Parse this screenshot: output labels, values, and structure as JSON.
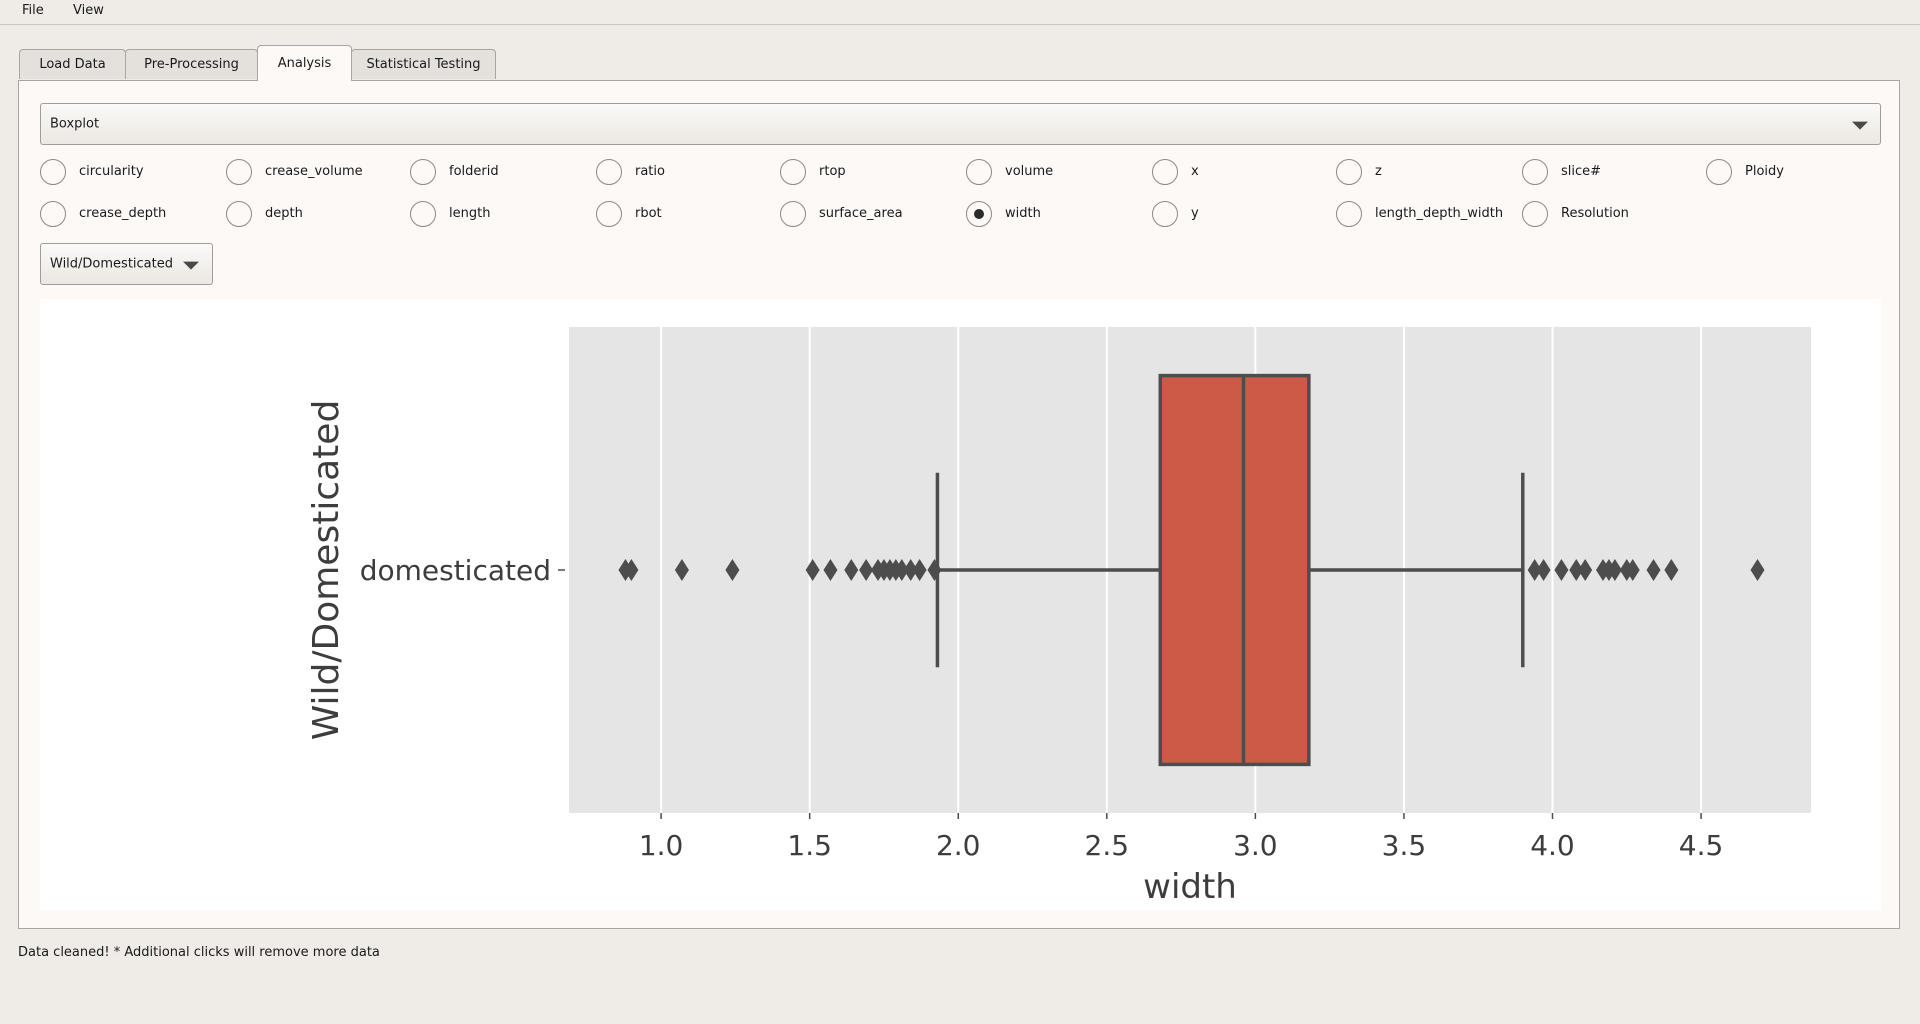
{
  "menu": {
    "file": "File",
    "view": "View"
  },
  "tabs": [
    {
      "label": "Load Data",
      "active": false
    },
    {
      "label": "Pre-Processing",
      "active": false
    },
    {
      "label": "Analysis",
      "active": true
    },
    {
      "label": "Statistical Testing",
      "active": false
    }
  ],
  "plot_type_select": {
    "value": "Boxplot"
  },
  "group_select": {
    "value": "Wild/Domesticated"
  },
  "variables": [
    {
      "label": "circularity",
      "checked": false
    },
    {
      "label": "crease_volume",
      "checked": false
    },
    {
      "label": "folderid",
      "checked": false
    },
    {
      "label": "ratio",
      "checked": false
    },
    {
      "label": "rtop",
      "checked": false
    },
    {
      "label": "volume",
      "checked": false
    },
    {
      "label": "x",
      "checked": false
    },
    {
      "label": "z",
      "checked": false
    },
    {
      "label": "slice#",
      "checked": false
    },
    {
      "label": "Ploidy",
      "checked": false
    },
    {
      "label": "crease_depth",
      "checked": false
    },
    {
      "label": "depth",
      "checked": false
    },
    {
      "label": "length",
      "checked": false
    },
    {
      "label": "rbot",
      "checked": false
    },
    {
      "label": "surface_area",
      "checked": false
    },
    {
      "label": "width",
      "checked": true
    },
    {
      "label": "y",
      "checked": false
    },
    {
      "label": "length_depth_width",
      "checked": false
    },
    {
      "label": "Resolution",
      "checked": false
    }
  ],
  "colors": {
    "box_fill": "#cc5a47",
    "line": "#4d4d4d",
    "plot_bg": "#e5e5e5",
    "grid": "#ffffff"
  },
  "chart_data": {
    "type": "boxplot",
    "orientation": "horizontal",
    "xlabel": "width",
    "ylabel": "Wild/Domesticated",
    "xlim": [
      0.69,
      4.87
    ],
    "xticks": [
      1.0,
      1.5,
      2.0,
      2.5,
      3.0,
      3.5,
      4.0,
      4.5
    ],
    "xtick_labels": [
      "1.0",
      "1.5",
      "2.0",
      "2.5",
      "3.0",
      "3.5",
      "4.0",
      "4.5"
    ],
    "categories": [
      "domesticated"
    ],
    "boxes": [
      {
        "category": "domesticated",
        "whisker_low": 1.93,
        "q1": 2.68,
        "median": 2.96,
        "q3": 3.18,
        "whisker_high": 3.9,
        "outliers": [
          0.88,
          0.9,
          1.07,
          1.24,
          1.51,
          1.57,
          1.64,
          1.69,
          1.73,
          1.75,
          1.77,
          1.79,
          1.81,
          1.84,
          1.87,
          1.92,
          3.94,
          3.97,
          4.03,
          4.08,
          4.11,
          4.17,
          4.19,
          4.21,
          4.25,
          4.27,
          4.34,
          4.4,
          4.69
        ]
      }
    ],
    "grid": true
  },
  "status": "Data cleaned! * Additional clicks will remove more data"
}
